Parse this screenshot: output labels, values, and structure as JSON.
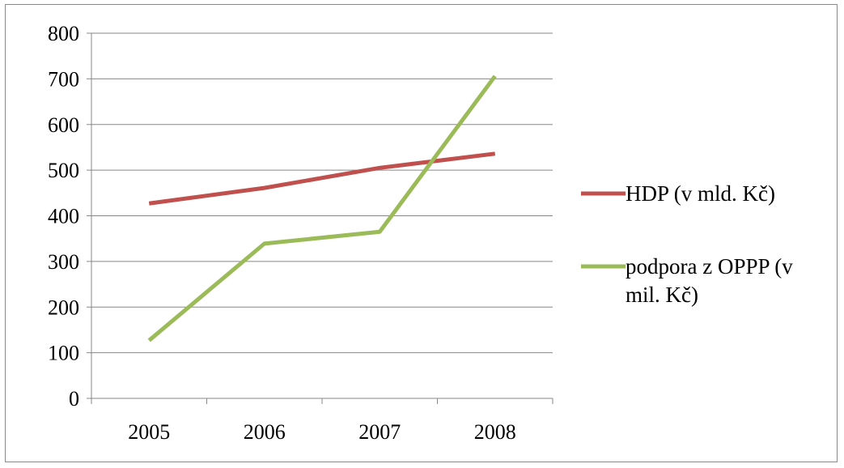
{
  "chart_data": {
    "type": "line",
    "categories": [
      "2005",
      "2006",
      "2007",
      "2008"
    ],
    "series": [
      {
        "name": "HDP (v mld. Kč)",
        "values": [
          427,
          461,
          505,
          536
        ],
        "color": "#c0504d"
      },
      {
        "name": "podpora z OPPP (v mil. Kč)",
        "values": [
          127,
          339,
          365,
          706
        ],
        "color": "#9bbb59"
      }
    ],
    "y_ticks": [
      "0",
      "100",
      "200",
      "300",
      "400",
      "500",
      "600",
      "700",
      "800"
    ],
    "ylim": [
      0,
      800
    ],
    "grid": true,
    "legend": "right",
    "legend_lines": [
      [
        "HDP (v mld. Kč)"
      ],
      [
        "podpora z OPPP (v",
        "mil. Kč)"
      ]
    ]
  }
}
